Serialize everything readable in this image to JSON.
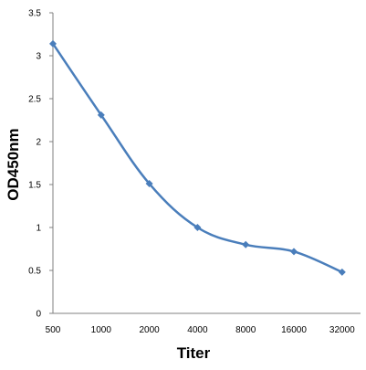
{
  "chart_data": {
    "type": "line",
    "title": "",
    "xlabel": "Titer",
    "ylabel": "OD450nm",
    "categories": [
      "500",
      "1000",
      "2000",
      "4000",
      "8000",
      "16000",
      "32000"
    ],
    "series": [
      {
        "values": [
          3.14,
          2.31,
          1.51,
          1.0,
          0.8,
          0.72,
          0.48
        ]
      }
    ],
    "ylim": [
      0,
      3.5
    ],
    "yticks": [
      "0",
      "0.5",
      "1",
      "1.5",
      "2",
      "2.5",
      "3",
      "3.5"
    ],
    "grid": false,
    "legend": "none",
    "line_color": "#4a7ebb",
    "marker": "diamond"
  }
}
